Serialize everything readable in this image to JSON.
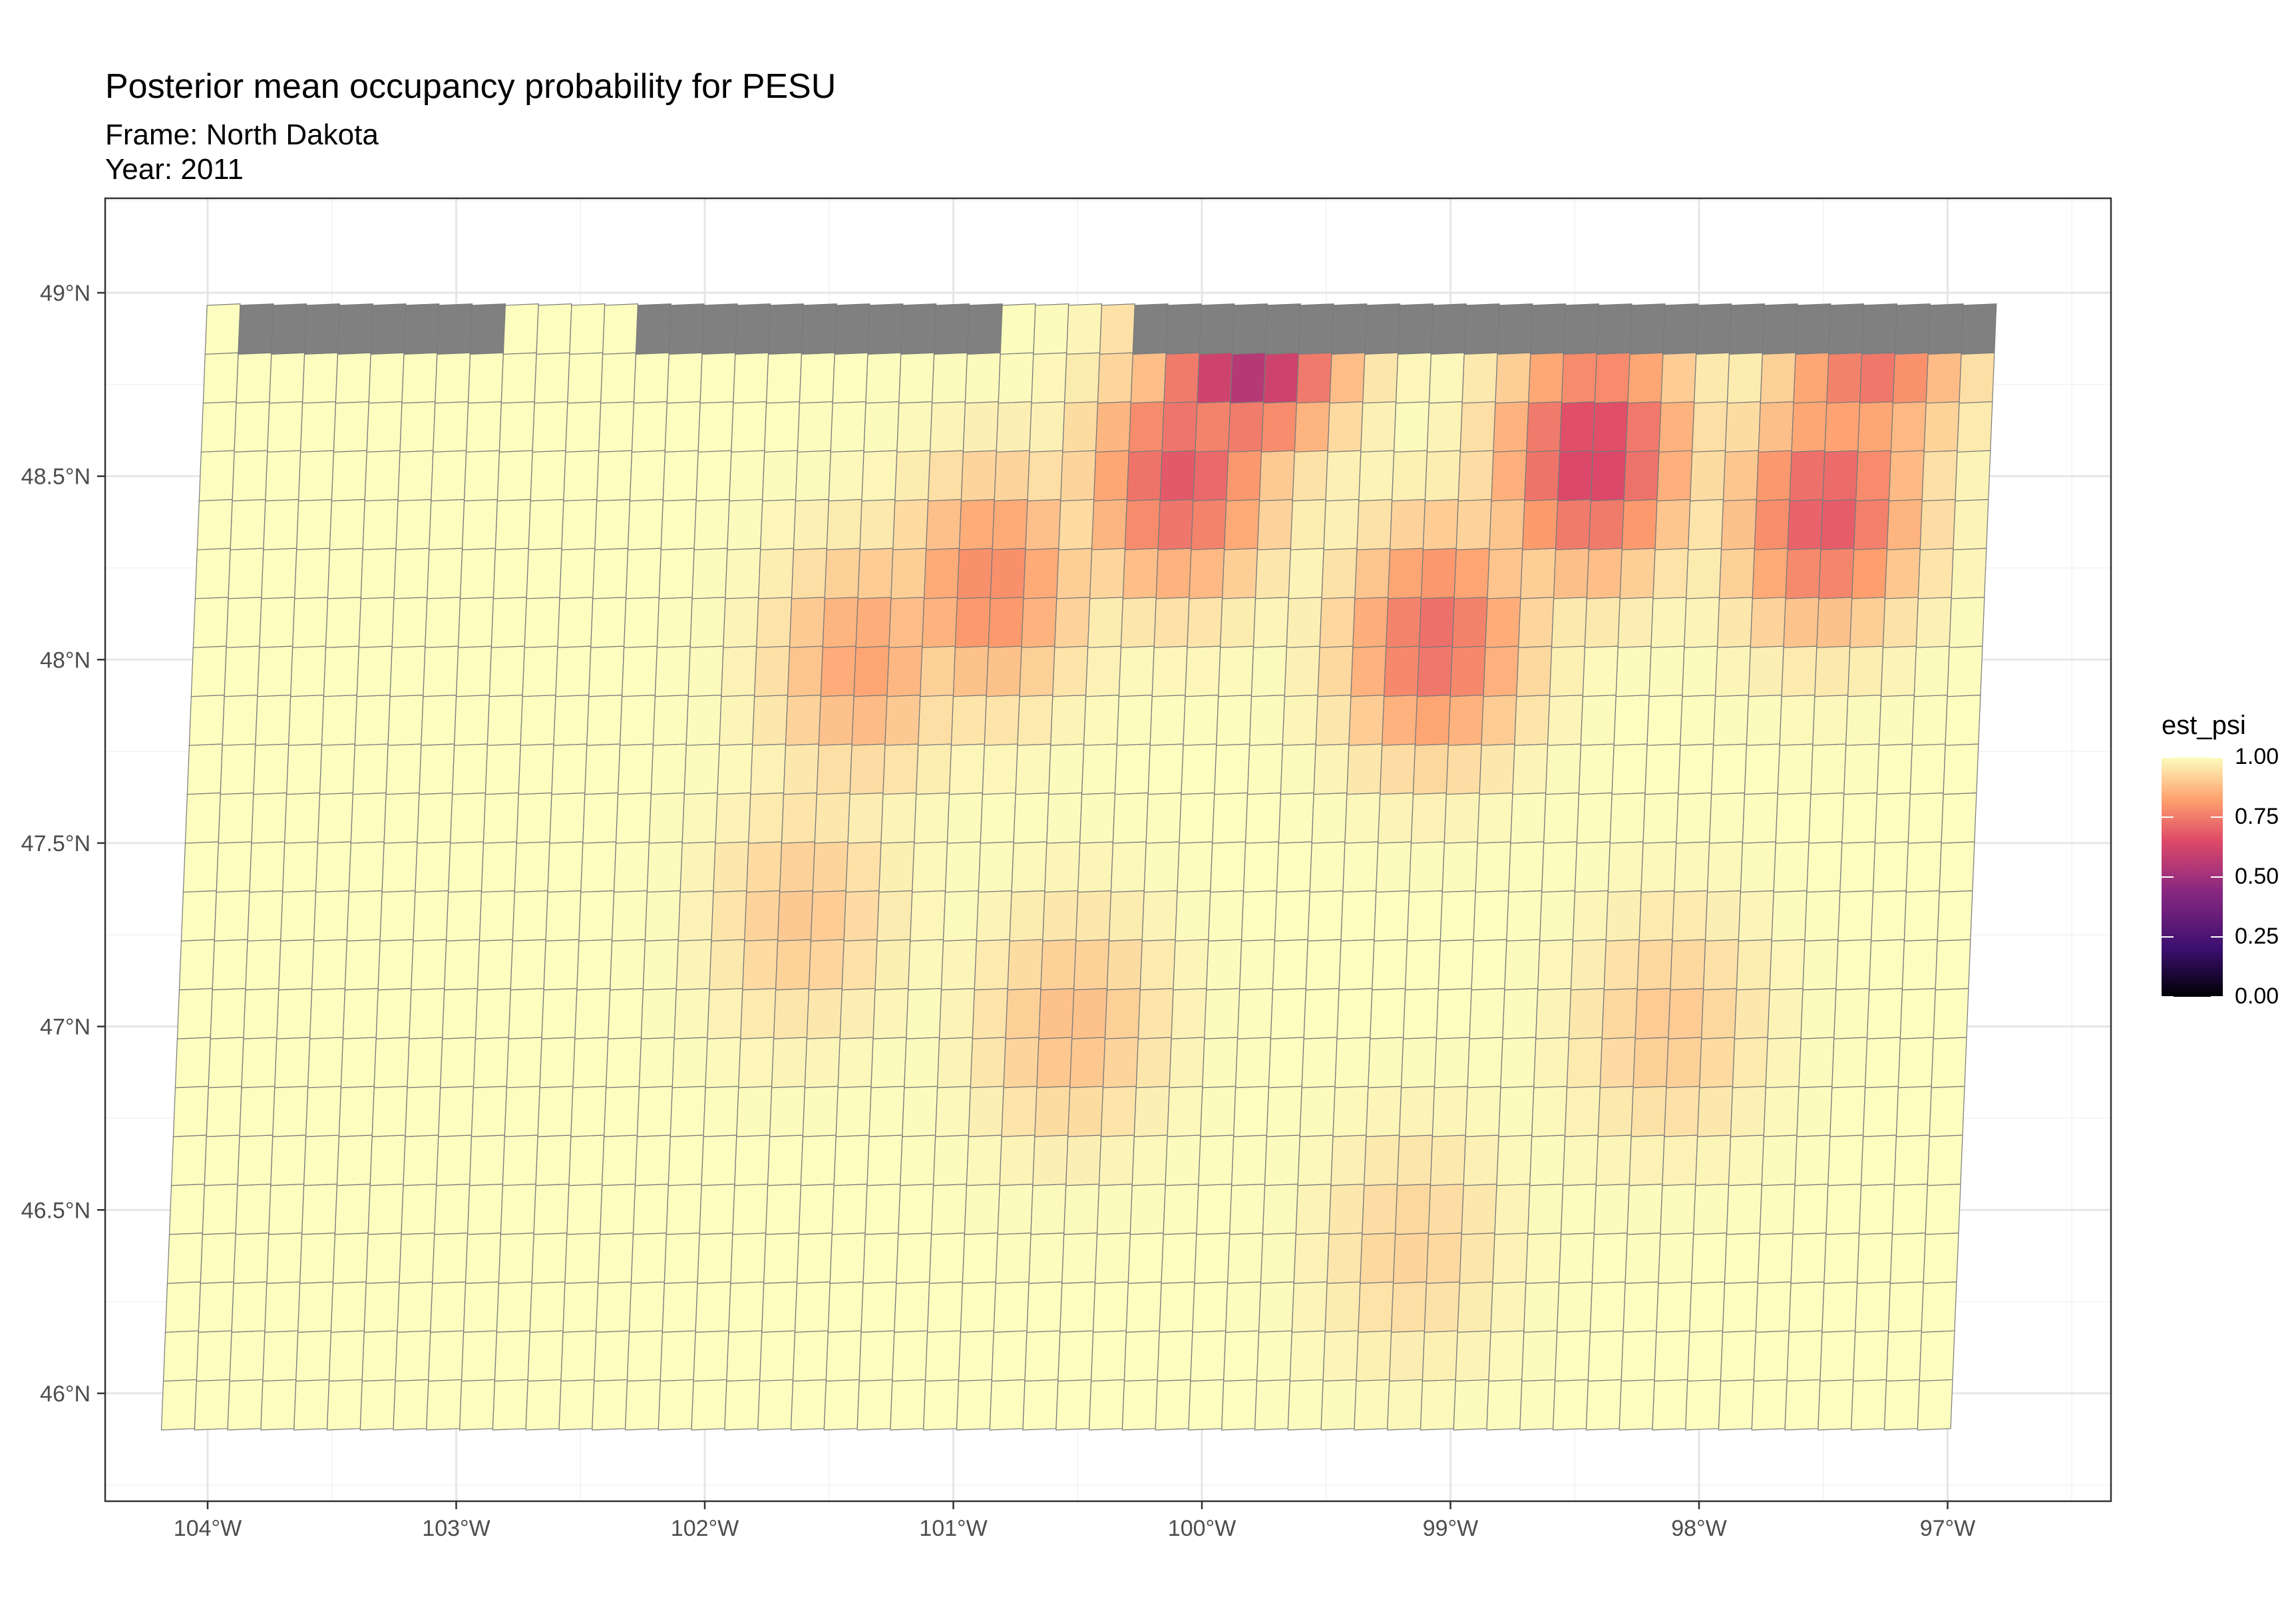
{
  "title": "Posterior mean occupancy probability for PESU",
  "subtitle_frame": "Frame: North Dakota",
  "subtitle_year": "Year: 2011",
  "chart_data": {
    "type": "heatmap",
    "x_axis_ticks": [
      "104°W",
      "103°W",
      "102°W",
      "101°W",
      "100°W",
      "99°W",
      "98°W",
      "97°W"
    ],
    "x_tick_values": [
      -104,
      -103,
      -102,
      -101,
      -100,
      -99,
      -98,
      -97
    ],
    "y_axis_ticks": [
      "49°N",
      "48.5°N",
      "48°N",
      "47.5°N",
      "47°N",
      "46.5°N",
      "46°N"
    ],
    "y_tick_values": [
      49,
      48.5,
      48,
      47.5,
      47,
      46.5,
      46
    ],
    "xlim": [
      -104.42,
      -96.35
    ],
    "ylim": [
      45.7,
      49.25
    ],
    "legend": {
      "title": "est_psi",
      "labels": [
        "1.00",
        "0.75",
        "0.50",
        "0.25",
        "0.00"
      ],
      "values": [
        1.0,
        0.75,
        0.5,
        0.25,
        0.0
      ],
      "position": "right"
    },
    "color_scale": [
      "#000004",
      "#3b0f70",
      "#8c2981",
      "#de4968",
      "#fe9f6d",
      "#fcfdbf"
    ],
    "na_color": "#808080",
    "grid": true,
    "lon_start": -104,
    "lon_end": -96.8,
    "lat_start": 45.9,
    "lat_end": 48.92,
    "cell_size_deg": 0.1333,
    "hotspots": [
      {
        "lon": -99.8,
        "lat": 48.9,
        "est_psi": 0.45
      },
      {
        "lon": -100.05,
        "lat": 48.5,
        "est_psi": 0.68
      },
      {
        "lon": -98.4,
        "lat": 48.55,
        "est_psi": 0.62
      },
      {
        "lon": -97.45,
        "lat": 48.4,
        "est_psi": 0.68
      },
      {
        "lon": -99.0,
        "lat": 48.05,
        "est_psi": 0.72
      },
      {
        "lon": -100.8,
        "lat": 48.2,
        "est_psi": 0.78
      },
      {
        "lon": -101.3,
        "lat": 48.0,
        "est_psi": 0.83
      },
      {
        "lon": -97.3,
        "lat": 48.85,
        "est_psi": 0.72
      },
      {
        "lon": -100.4,
        "lat": 47.0,
        "est_psi": 0.88
      },
      {
        "lon": -98.0,
        "lat": 47.0,
        "est_psi": 0.9
      },
      {
        "lon": -99.0,
        "lat": 46.4,
        "est_psi": 0.92
      },
      {
        "lon": -101.5,
        "lat": 47.3,
        "est_psi": 0.9
      }
    ]
  }
}
